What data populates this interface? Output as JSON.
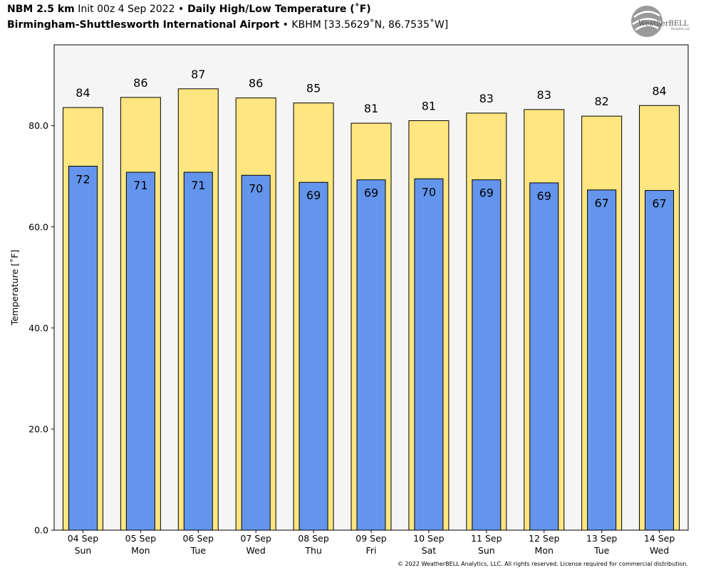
{
  "header": {
    "line1": {
      "model": "NBM 2.5 km",
      "init": " Init 00z 4 Sep 2022 ",
      "bullet": "•",
      "product": " Daily High/Low Temperature (˚F)"
    },
    "line2": {
      "location": "Birmingham-Shuttlesworth International Airport",
      "bullet": " • ",
      "station": "KBHM [33.5629˚N, 86.7535˚W]"
    }
  },
  "logo": {
    "text": "WeatherBELL",
    "subtext": "Analytics LLC"
  },
  "copyright": "© 2022 WeatherBELL Analytics, LLC. All rights reserved. License required for commercial distribution.",
  "colors": {
    "high": "#ffe680",
    "low": "#6495ed",
    "plot_bg": "#f5f5f5"
  },
  "chart_data": {
    "type": "bar",
    "ylabel": "Temperature [˚F]",
    "ylim": [
      0,
      96
    ],
    "yticks": [
      "0.0",
      "20.0",
      "40.0",
      "60.0",
      "80.0"
    ],
    "categories": [
      [
        "04 Sep",
        "Sun"
      ],
      [
        "05 Sep",
        "Mon"
      ],
      [
        "06 Sep",
        "Tue"
      ],
      [
        "07 Sep",
        "Wed"
      ],
      [
        "08 Sep",
        "Thu"
      ],
      [
        "09 Sep",
        "Fri"
      ],
      [
        "10 Sep",
        "Sat"
      ],
      [
        "11 Sep",
        "Sun"
      ],
      [
        "12 Sep",
        "Mon"
      ],
      [
        "13 Sep",
        "Tue"
      ],
      [
        "14 Sep",
        "Wed"
      ]
    ],
    "series": [
      {
        "values": [
          83.6,
          85.6,
          87.3,
          85.5,
          84.5,
          80.5,
          81.0,
          82.5,
          83.2,
          81.9,
          84.0
        ],
        "labels": [
          "84",
          "86",
          "87",
          "86",
          "85",
          "81",
          "81",
          "83",
          "83",
          "82",
          "84"
        ]
      },
      {
        "values": [
          72.0,
          70.8,
          70.8,
          70.2,
          68.8,
          69.3,
          69.5,
          69.3,
          68.7,
          67.3,
          67.2
        ],
        "labels": [
          "72",
          "71",
          "71",
          "70",
          "69",
          "69",
          "70",
          "69",
          "69",
          "67",
          "67"
        ]
      }
    ]
  }
}
